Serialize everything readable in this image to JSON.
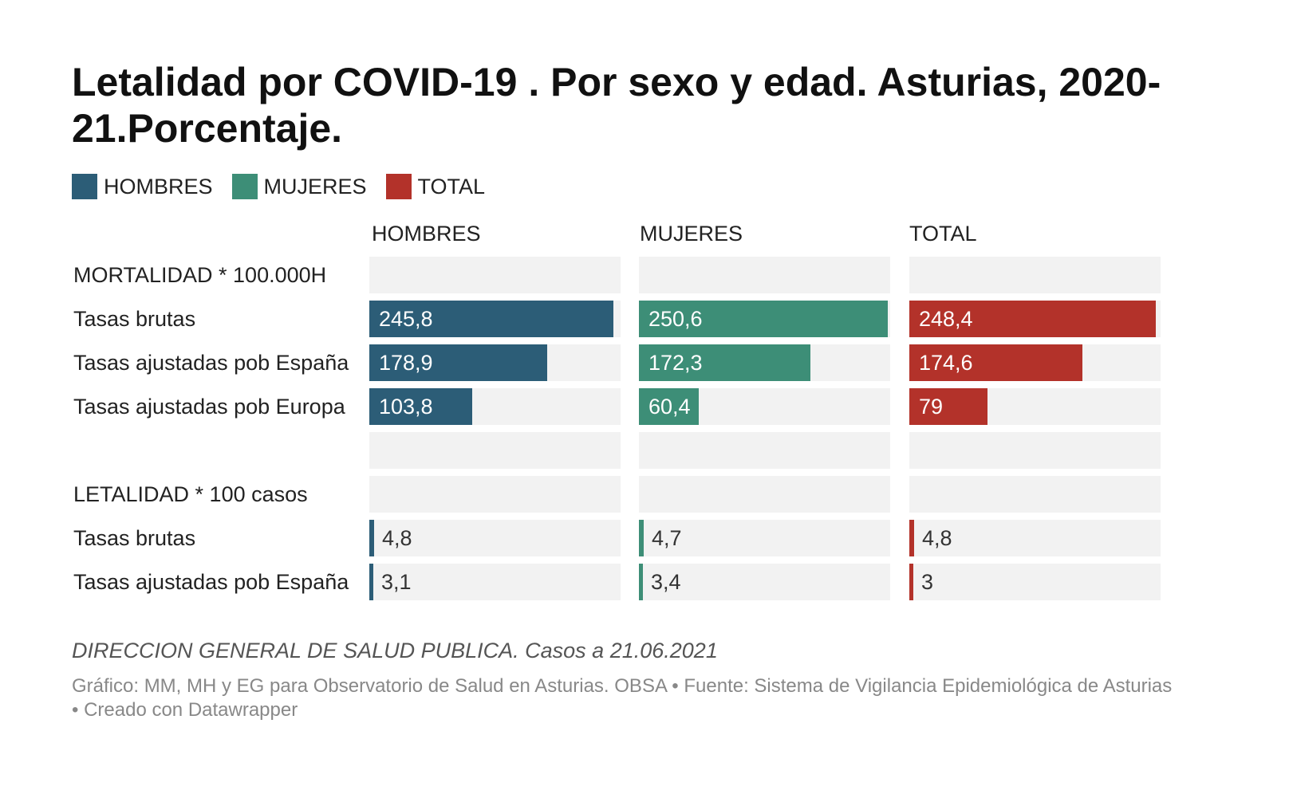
{
  "chart_data": {
    "type": "bar",
    "title": "Letalidad por COVID-19 . Por sexo y edad.  Asturias, 2020-21.Porcentaje.",
    "legend": [
      {
        "label": "HOMBRES",
        "color": "#2c5d77"
      },
      {
        "label": "MUJERES",
        "color": "#3d8e77"
      },
      {
        "label": "TOTAL",
        "color": "#b3322a"
      }
    ],
    "columns": [
      {
        "label": "HOMBRES",
        "color": "#2c5d77"
      },
      {
        "label": "MUJERES",
        "color": "#3d8e77"
      },
      {
        "label": "TOTAL",
        "color": "#b3322a"
      }
    ],
    "rows": [
      {
        "label": "MORTALIDAD * 100.000H",
        "values": [
          null,
          null,
          null
        ],
        "display": [
          "",
          "",
          ""
        ]
      },
      {
        "label": "Tasas brutas",
        "values": [
          245.8,
          250.6,
          248.4
        ],
        "display": [
          "245,8",
          "250,6",
          "248,4"
        ]
      },
      {
        "label": "Tasas ajustadas pob España",
        "values": [
          178.9,
          172.3,
          174.6
        ],
        "display": [
          "178,9",
          "172,3",
          "174,6"
        ]
      },
      {
        "label": "Tasas ajustadas pob Europa",
        "values": [
          103.8,
          60.4,
          79
        ],
        "display": [
          "103,8",
          "60,4",
          "79"
        ]
      },
      {
        "label": "",
        "values": [
          null,
          null,
          null
        ],
        "display": [
          "",
          "",
          ""
        ]
      },
      {
        "label": "LETALIDAD * 100 casos",
        "values": [
          null,
          null,
          null
        ],
        "display": [
          "",
          "",
          ""
        ]
      },
      {
        "label": "Tasas brutas",
        "values": [
          4.8,
          4.7,
          4.8
        ],
        "display": [
          "4,8",
          "4,7",
          "4,8"
        ]
      },
      {
        "label": "Tasas ajustadas pob España",
        "values": [
          3.1,
          3.4,
          3
        ],
        "display": [
          "3,1",
          "3,4",
          "3"
        ]
      }
    ],
    "notes": "DIRECCION GENERAL DE SALUD PUBLICA. Casos a 21.06.2021",
    "footer": "Gráfico: MM, MH y EG para Observatorio de Salud en Asturias. OBSA • Fuente: Sistema de Vigilancia Epidemiológica de Asturias • Creado con Datawrapper"
  }
}
